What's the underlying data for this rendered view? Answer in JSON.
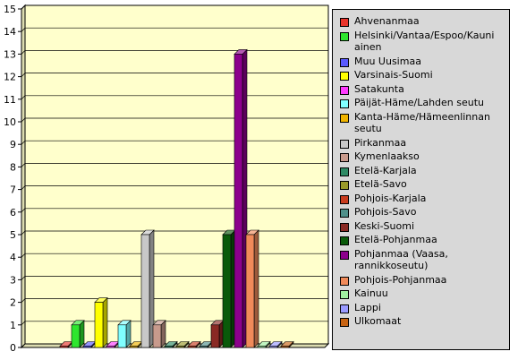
{
  "chart_data": {
    "type": "bar",
    "title": "",
    "xlabel": "",
    "ylabel": "",
    "ylim": [
      0,
      15
    ],
    "y_ticks": [
      "0",
      "1",
      "2",
      "3",
      "4",
      "5",
      "6",
      "7",
      "8",
      "9",
      "10",
      "11",
      "12",
      "13",
      "14",
      "15"
    ],
    "grid": true,
    "legend_position": "right",
    "series": [
      {
        "name": "Ahvenanmaa",
        "value": 0,
        "color": "#e8342b"
      },
      {
        "name": "Helsinki/Vantaa/Espoo/Kauniainen",
        "value": 1,
        "color": "#2ee62e"
      },
      {
        "name": "Muu Uusimaa",
        "value": 0,
        "color": "#5a5aff"
      },
      {
        "name": "Varsinais-Suomi",
        "value": 2,
        "color": "#ffff00"
      },
      {
        "name": "Satakunta",
        "value": 0,
        "color": "#ff3cff"
      },
      {
        "name": "Päijät-Häme/Lahden seutu",
        "value": 1,
        "color": "#80ffff"
      },
      {
        "name": "Kanta-Häme/Hämeenlinnan seutu",
        "value": 0,
        "color": "#f0b400"
      },
      {
        "name": "Pirkanmaa",
        "value": 5,
        "color": "#c8c8c8"
      },
      {
        "name": "Kymenlaakso",
        "value": 1,
        "color": "#c89a8c"
      },
      {
        "name": "Etelä-Karjala",
        "value": 0,
        "color": "#2e8a64"
      },
      {
        "name": "Etelä-Savo",
        "value": 0,
        "color": "#9a9a2a"
      },
      {
        "name": "Pohjois-Karjala",
        "value": 0,
        "color": "#c83c1e"
      },
      {
        "name": "Pohjois-Savo",
        "value": 0,
        "color": "#50908a"
      },
      {
        "name": "Keski-Suomi",
        "value": 1,
        "color": "#8a2a24"
      },
      {
        "name": "Etelä-Pohjanmaa",
        "value": 5,
        "color": "#0a5a0a"
      },
      {
        "name": "Pohjanmaa (Vaasa, rannikkoseutu)",
        "value": 13,
        "color": "#8c008c"
      },
      {
        "name": "Pohjois-Pohjanmaa",
        "value": 5,
        "color": "#f08a5a"
      },
      {
        "name": "Kainuu",
        "value": 0,
        "color": "#a0f0a0"
      },
      {
        "name": "Lappi",
        "value": 0,
        "color": "#9a9aff"
      },
      {
        "name": "Ulkomaat",
        "value": 0,
        "color": "#c86414"
      }
    ]
  },
  "legend": {
    "labels": [
      [
        "Ahvenanmaa"
      ],
      [
        "Helsinki/Vantaa/Espoo/Kauni",
        "ainen"
      ],
      [
        "Muu Uusimaa"
      ],
      [
        "Varsinais-Suomi"
      ],
      [
        "Satakunta"
      ],
      [
        "Päijät-Häme/Lahden seutu"
      ],
      [
        "Kanta-Häme/Hämeenlinnan",
        "seutu"
      ],
      [
        "Pirkanmaa"
      ],
      [
        "Kymenlaakso"
      ],
      [
        "Etelä-Karjala"
      ],
      [
        "Etelä-Savo"
      ],
      [
        "Pohjois-Karjala"
      ],
      [
        "Pohjois-Savo"
      ],
      [
        "Keski-Suomi"
      ],
      [
        "Etelä-Pohjanmaa"
      ],
      [
        "Pohjanmaa (Vaasa,",
        "rannikkoseutu)"
      ],
      [
        "Pohjois-Pohjanmaa"
      ],
      [
        "Kainuu"
      ],
      [
        "Lappi"
      ],
      [
        "Ulkomaat"
      ]
    ]
  }
}
